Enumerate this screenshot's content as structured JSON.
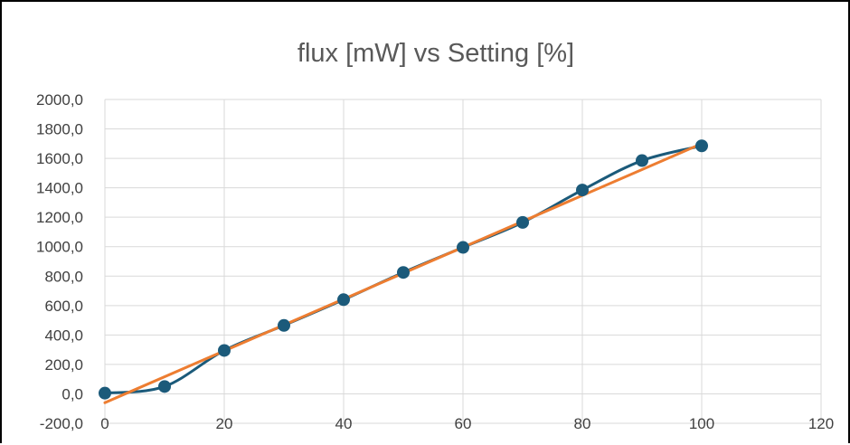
{
  "chart_data": {
    "type": "line",
    "title": "flux [mW] vs Setting [%]",
    "xlabel": "",
    "ylabel": "",
    "xlim": [
      0,
      120
    ],
    "ylim": [
      -200,
      2000
    ],
    "x_ticks": [
      "0",
      "20",
      "40",
      "60",
      "80",
      "100",
      "120"
    ],
    "y_ticks": [
      "-200,0",
      "0,0",
      "200,0",
      "400,0",
      "600,0",
      "800,0",
      "1000,0",
      "1200,0",
      "1400,0",
      "1600,0",
      "1800,0",
      "2000,0"
    ],
    "grid": true,
    "legend": "none",
    "series": [
      {
        "kind": "smoothed-line-with-markers",
        "color": "#1b5a7a",
        "x": [
          0,
          10,
          20,
          30,
          40,
          50,
          60,
          70,
          80,
          90,
          100
        ],
        "y": [
          5,
          50,
          295,
          465,
          640,
          825,
          995,
          1165,
          1385,
          1585,
          1685
        ]
      },
      {
        "kind": "linear-trendline",
        "color": "#ed7d31",
        "x": [
          0,
          100
        ],
        "y": [
          -60,
          1700
        ]
      }
    ]
  }
}
